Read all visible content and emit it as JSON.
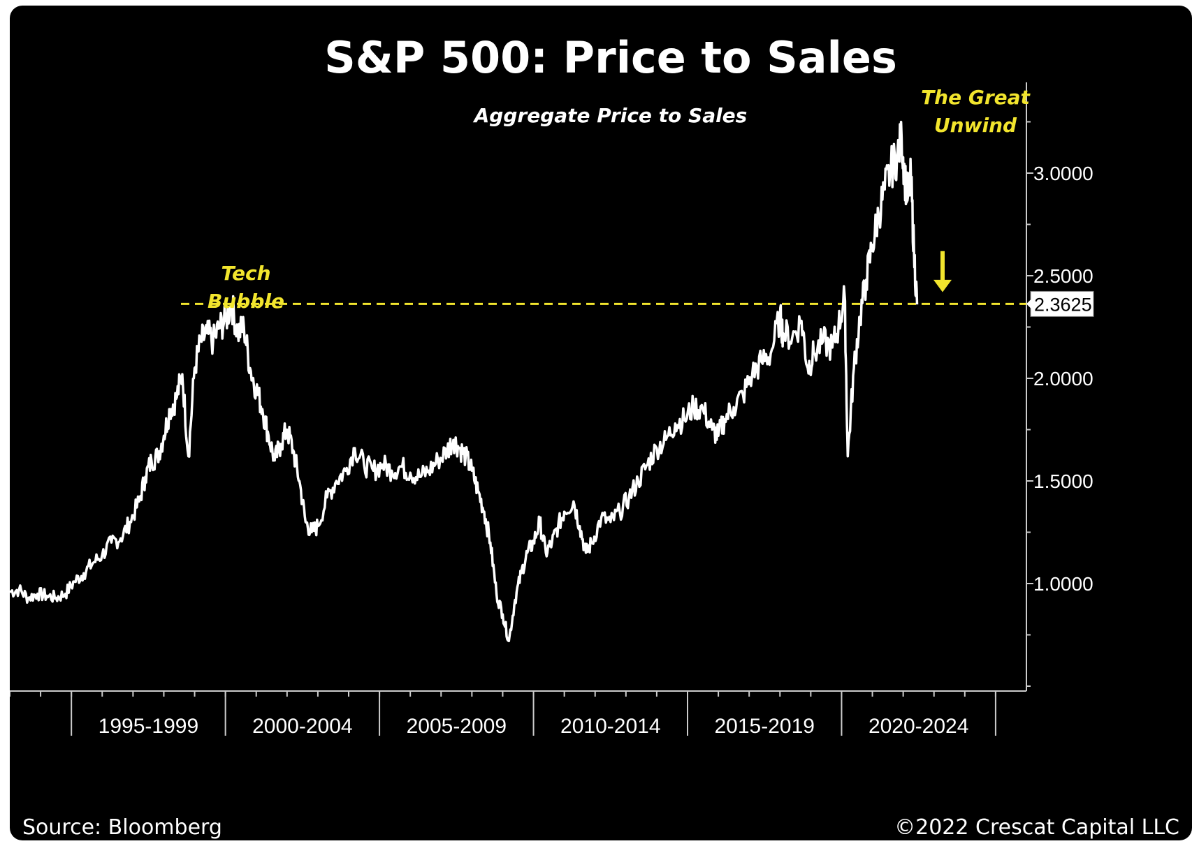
{
  "chart_data": {
    "type": "line",
    "title": "S&P 500: Price to Sales",
    "subtitle": "Aggregate Price to Sales",
    "xlabel": "",
    "ylabel": "",
    "ylim": [
      0.5,
      3.4
    ],
    "xlim": [
      1993.0,
      2026.0
    ],
    "y_ticks": [
      "1.0000",
      "1.5000",
      "2.0000",
      "2.5000",
      "3.0000"
    ],
    "y_tick_values": [
      1.0,
      1.5,
      2.0,
      2.5,
      3.0
    ],
    "x_groups": [
      "1995-1999",
      "2000-2004",
      "2005-2009",
      "2010-2014",
      "2015-2019",
      "2020-2024"
    ],
    "x_group_start_years": [
      1995,
      2000,
      2005,
      2010,
      2015,
      2020
    ],
    "grid": false,
    "series": [
      {
        "color": "#ffffff",
        "points": [
          [
            1993.0,
            0.96
          ],
          [
            1993.3,
            0.97
          ],
          [
            1993.6,
            0.93
          ],
          [
            1993.9,
            0.95
          ],
          [
            1994.2,
            0.94
          ],
          [
            1994.5,
            0.93
          ],
          [
            1994.8,
            0.95
          ],
          [
            1995.1,
            1.01
          ],
          [
            1995.4,
            1.05
          ],
          [
            1995.7,
            1.1
          ],
          [
            1996.0,
            1.14
          ],
          [
            1996.3,
            1.2
          ],
          [
            1996.6,
            1.22
          ],
          [
            1996.9,
            1.3
          ],
          [
            1997.2,
            1.4
          ],
          [
            1997.4,
            1.52
          ],
          [
            1997.6,
            1.6
          ],
          [
            1997.8,
            1.62
          ],
          [
            1998.0,
            1.72
          ],
          [
            1998.2,
            1.85
          ],
          [
            1998.4,
            1.9
          ],
          [
            1998.6,
            2.02
          ],
          [
            1998.8,
            1.62
          ],
          [
            1999.0,
            2.05
          ],
          [
            1999.2,
            2.18
          ],
          [
            1999.4,
            2.22
          ],
          [
            1999.6,
            2.18
          ],
          [
            1999.8,
            2.25
          ],
          [
            2000.0,
            2.28
          ],
          [
            2000.2,
            2.36
          ],
          [
            2000.4,
            2.22
          ],
          [
            2000.6,
            2.25
          ],
          [
            2000.8,
            2.05
          ],
          [
            2001.0,
            1.95
          ],
          [
            2001.2,
            1.85
          ],
          [
            2001.4,
            1.72
          ],
          [
            2001.6,
            1.6
          ],
          [
            2001.8,
            1.68
          ],
          [
            2002.0,
            1.75
          ],
          [
            2002.2,
            1.65
          ],
          [
            2002.4,
            1.5
          ],
          [
            2002.6,
            1.3
          ],
          [
            2002.8,
            1.25
          ],
          [
            2003.0,
            1.28
          ],
          [
            2003.3,
            1.42
          ],
          [
            2003.6,
            1.5
          ],
          [
            2003.9,
            1.55
          ],
          [
            2004.2,
            1.66
          ],
          [
            2004.5,
            1.58
          ],
          [
            2004.8,
            1.55
          ],
          [
            2005.1,
            1.58
          ],
          [
            2005.4,
            1.55
          ],
          [
            2005.7,
            1.57
          ],
          [
            2006.0,
            1.54
          ],
          [
            2006.3,
            1.52
          ],
          [
            2006.6,
            1.55
          ],
          [
            2006.9,
            1.6
          ],
          [
            2007.2,
            1.65
          ],
          [
            2007.4,
            1.7
          ],
          [
            2007.6,
            1.66
          ],
          [
            2007.8,
            1.62
          ],
          [
            2008.0,
            1.55
          ],
          [
            2008.2,
            1.45
          ],
          [
            2008.4,
            1.35
          ],
          [
            2008.6,
            1.2
          ],
          [
            2008.8,
            0.95
          ],
          [
            2009.0,
            0.85
          ],
          [
            2009.2,
            0.72
          ],
          [
            2009.4,
            0.92
          ],
          [
            2009.6,
            1.05
          ],
          [
            2009.8,
            1.15
          ],
          [
            2010.0,
            1.2
          ],
          [
            2010.2,
            1.3
          ],
          [
            2010.4,
            1.15
          ],
          [
            2010.6,
            1.2
          ],
          [
            2010.8,
            1.28
          ],
          [
            2011.0,
            1.35
          ],
          [
            2011.3,
            1.4
          ],
          [
            2011.5,
            1.28
          ],
          [
            2011.7,
            1.15
          ],
          [
            2011.9,
            1.2
          ],
          [
            2012.2,
            1.32
          ],
          [
            2012.5,
            1.3
          ],
          [
            2012.8,
            1.35
          ],
          [
            2013.1,
            1.42
          ],
          [
            2013.4,
            1.5
          ],
          [
            2013.7,
            1.58
          ],
          [
            2014.0,
            1.66
          ],
          [
            2014.3,
            1.7
          ],
          [
            2014.6,
            1.78
          ],
          [
            2014.9,
            1.8
          ],
          [
            2015.2,
            1.86
          ],
          [
            2015.5,
            1.85
          ],
          [
            2015.8,
            1.75
          ],
          [
            2016.0,
            1.72
          ],
          [
            2016.2,
            1.8
          ],
          [
            2016.5,
            1.86
          ],
          [
            2016.8,
            1.92
          ],
          [
            2017.1,
            2.02
          ],
          [
            2017.4,
            2.08
          ],
          [
            2017.7,
            2.12
          ],
          [
            2018.0,
            2.3
          ],
          [
            2018.1,
            2.22
          ],
          [
            2018.4,
            2.2
          ],
          [
            2018.7,
            2.28
          ],
          [
            2018.9,
            2.05
          ],
          [
            2019.1,
            2.12
          ],
          [
            2019.4,
            2.18
          ],
          [
            2019.7,
            2.15
          ],
          [
            2019.9,
            2.25
          ],
          [
            2020.1,
            2.4
          ],
          [
            2020.2,
            1.62
          ],
          [
            2020.4,
            2.05
          ],
          [
            2020.6,
            2.3
          ],
          [
            2020.8,
            2.48
          ],
          [
            2021.0,
            2.65
          ],
          [
            2021.2,
            2.8
          ],
          [
            2021.4,
            2.92
          ],
          [
            2021.6,
            3.02
          ],
          [
            2021.8,
            3.08
          ],
          [
            2021.95,
            3.17
          ],
          [
            2022.05,
            2.98
          ],
          [
            2022.15,
            2.88
          ],
          [
            2022.25,
            2.98
          ],
          [
            2022.35,
            2.62
          ],
          [
            2022.45,
            2.36
          ]
        ]
      }
    ],
    "reference_line": {
      "value": 2.3625,
      "label": "2.3625",
      "color": "#f2e52d"
    },
    "annotations": [
      {
        "text_lines": [
          "Tech",
          "Bubble"
        ],
        "color": "#f2e52d"
      },
      {
        "text_lines": [
          "The Great",
          "Unwind"
        ],
        "color": "#f2e52d"
      }
    ],
    "arrow": {
      "direction": "down",
      "color": "#f2e52d"
    }
  },
  "footer": {
    "source": "Source: Bloomberg",
    "copyright": "©2022 Crescat Capital LLC"
  }
}
